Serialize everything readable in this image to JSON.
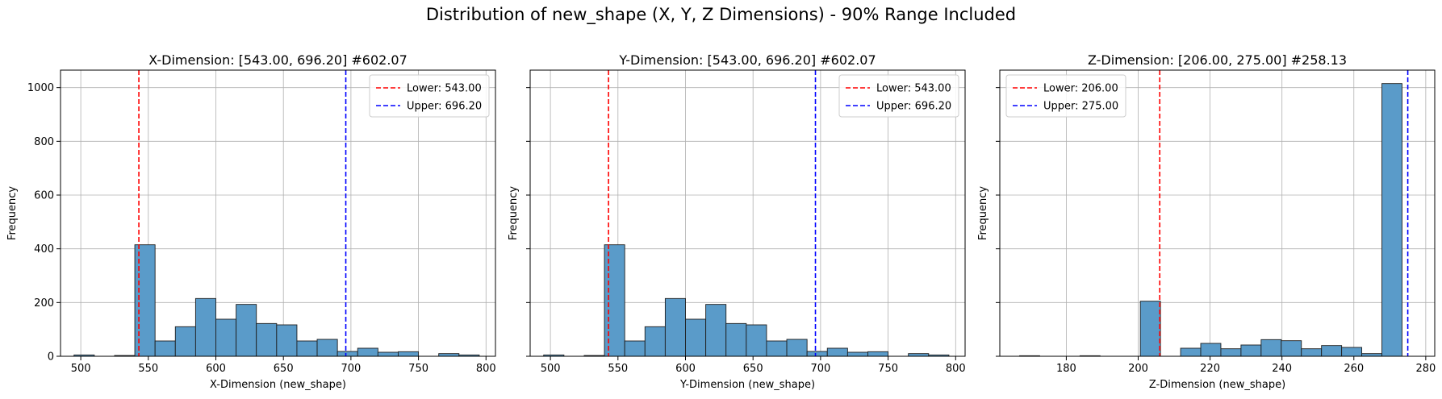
{
  "suptitle": "Distribution of new_shape (X, Y, Z Dimensions) - 90% Range Included",
  "chart_data": [
    {
      "type": "bar",
      "title": "X-Dimension: [543.00, 696.20] #602.07",
      "xlabel": "X-Dimension (new_shape)",
      "ylabel": "Frequency",
      "xlim": [
        485,
        807
      ],
      "ylim": [
        0,
        1065
      ],
      "xticks": [
        500,
        550,
        600,
        650,
        700,
        750,
        800
      ],
      "yticks": [
        0,
        200,
        400,
        600,
        800,
        1000
      ],
      "grid": true,
      "legend_position": "upper right",
      "bin_edges": [
        495,
        510,
        525,
        540,
        555,
        570,
        585,
        600,
        615,
        630,
        645,
        660,
        675,
        690,
        705,
        720,
        735,
        750,
        765,
        780,
        795
      ],
      "values": [
        5,
        0,
        3,
        415,
        57,
        110,
        215,
        138,
        193,
        122,
        117,
        57,
        63,
        18,
        30,
        15,
        17,
        0,
        10,
        5
      ],
      "bar_color": "#5a9bc9",
      "lines": [
        {
          "label": "Lower: 543.00",
          "x": 543.0,
          "color": "#ff0000"
        },
        {
          "label": "Upper: 696.20",
          "x": 696.2,
          "color": "#0000ff"
        }
      ]
    },
    {
      "type": "bar",
      "title": "Y-Dimension: [543.00, 696.20] #602.07",
      "xlabel": "Y-Dimension (new_shape)",
      "ylabel": "Frequency",
      "xlim": [
        485,
        807
      ],
      "ylim": [
        0,
        1065
      ],
      "xticks": [
        500,
        550,
        600,
        650,
        700,
        750,
        800
      ],
      "yticks": [
        0,
        200,
        400,
        600,
        800,
        1000
      ],
      "grid": true,
      "legend_position": "upper right",
      "bin_edges": [
        495,
        510,
        525,
        540,
        555,
        570,
        585,
        600,
        615,
        630,
        645,
        660,
        675,
        690,
        705,
        720,
        735,
        750,
        765,
        780,
        795
      ],
      "values": [
        5,
        0,
        3,
        415,
        57,
        110,
        215,
        138,
        193,
        122,
        117,
        57,
        63,
        18,
        30,
        15,
        17,
        0,
        10,
        5
      ],
      "bar_color": "#5a9bc9",
      "lines": [
        {
          "label": "Lower: 543.00",
          "x": 543.0,
          "color": "#ff0000"
        },
        {
          "label": "Upper: 696.20",
          "x": 696.2,
          "color": "#0000ff"
        }
      ]
    },
    {
      "type": "bar",
      "title": "Z-Dimension: [206.00, 275.00] #258.13",
      "xlabel": "Z-Dimension (new_shape)",
      "ylabel": "Frequency",
      "xlim": [
        161.5,
        282.5
      ],
      "ylim": [
        0,
        1065
      ],
      "xticks": [
        180,
        200,
        220,
        240,
        260,
        280
      ],
      "yticks": [
        0,
        200,
        400,
        600,
        800,
        1000
      ],
      "grid": true,
      "legend_position": "upper left",
      "bin_edges": [
        167,
        172.6,
        178.2,
        183.8,
        189.4,
        195,
        200.6,
        206.2,
        211.8,
        217.4,
        223,
        228.6,
        234.2,
        239.8,
        245.4,
        251,
        256.6,
        262.2,
        267.8,
        273.4,
        279
      ],
      "values": [
        2,
        0,
        0,
        2,
        0,
        0,
        205,
        0,
        30,
        48,
        28,
        42,
        62,
        58,
        28,
        40,
        33,
        10,
        1015,
        0
      ],
      "bar_color": "#5a9bc9",
      "lines": [
        {
          "label": "Lower: 206.00",
          "x": 206.0,
          "color": "#ff0000"
        },
        {
          "label": "Upper: 275.00",
          "x": 275.0,
          "color": "#0000ff"
        }
      ]
    }
  ]
}
